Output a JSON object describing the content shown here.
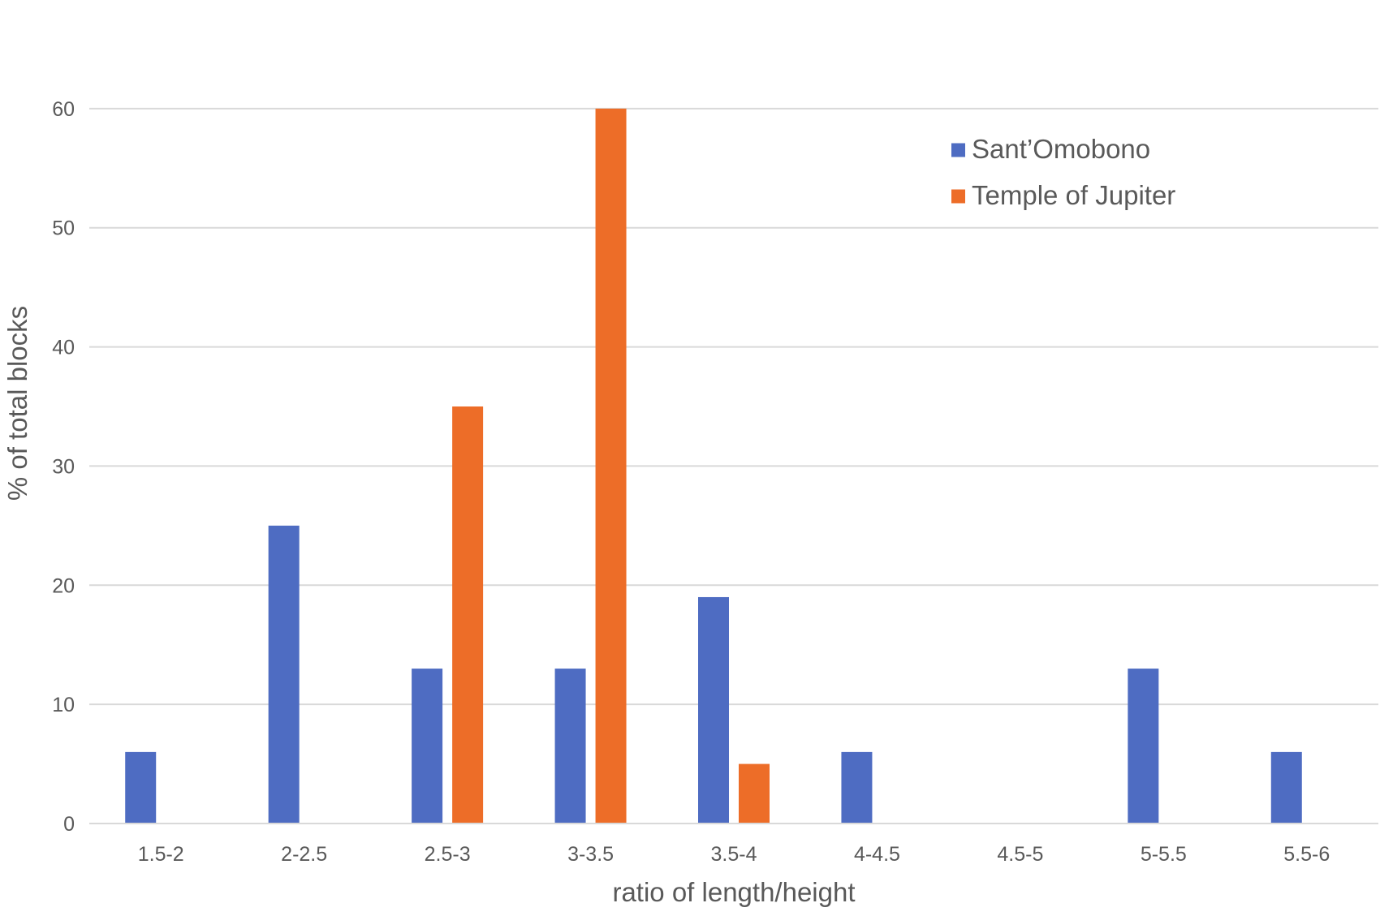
{
  "chart_data": {
    "type": "bar",
    "categories": [
      "1.5-2",
      "2-2.5",
      "2.5-3",
      "3-3.5",
      "3.5-4",
      "4-4.5",
      "4.5-5",
      "5-5.5",
      "5.5-6"
    ],
    "series": [
      {
        "name": "Sant’Omobono",
        "color": "#4e6cc2",
        "values": [
          6,
          25,
          13,
          13,
          19,
          6,
          0,
          13,
          6
        ]
      },
      {
        "name": "Temple of Jupiter",
        "color": "#ed6d28",
        "values": [
          0,
          0,
          35,
          60,
          5,
          0,
          0,
          0,
          0
        ]
      }
    ],
    "title": "",
    "xlabel": "ratio of length/height",
    "ylabel": "% of total blocks",
    "ylim": [
      0,
      70
    ],
    "yticks": [
      0,
      10,
      20,
      30,
      40,
      50,
      60,
      70
    ],
    "grid": true,
    "legend_position": "top-right"
  }
}
